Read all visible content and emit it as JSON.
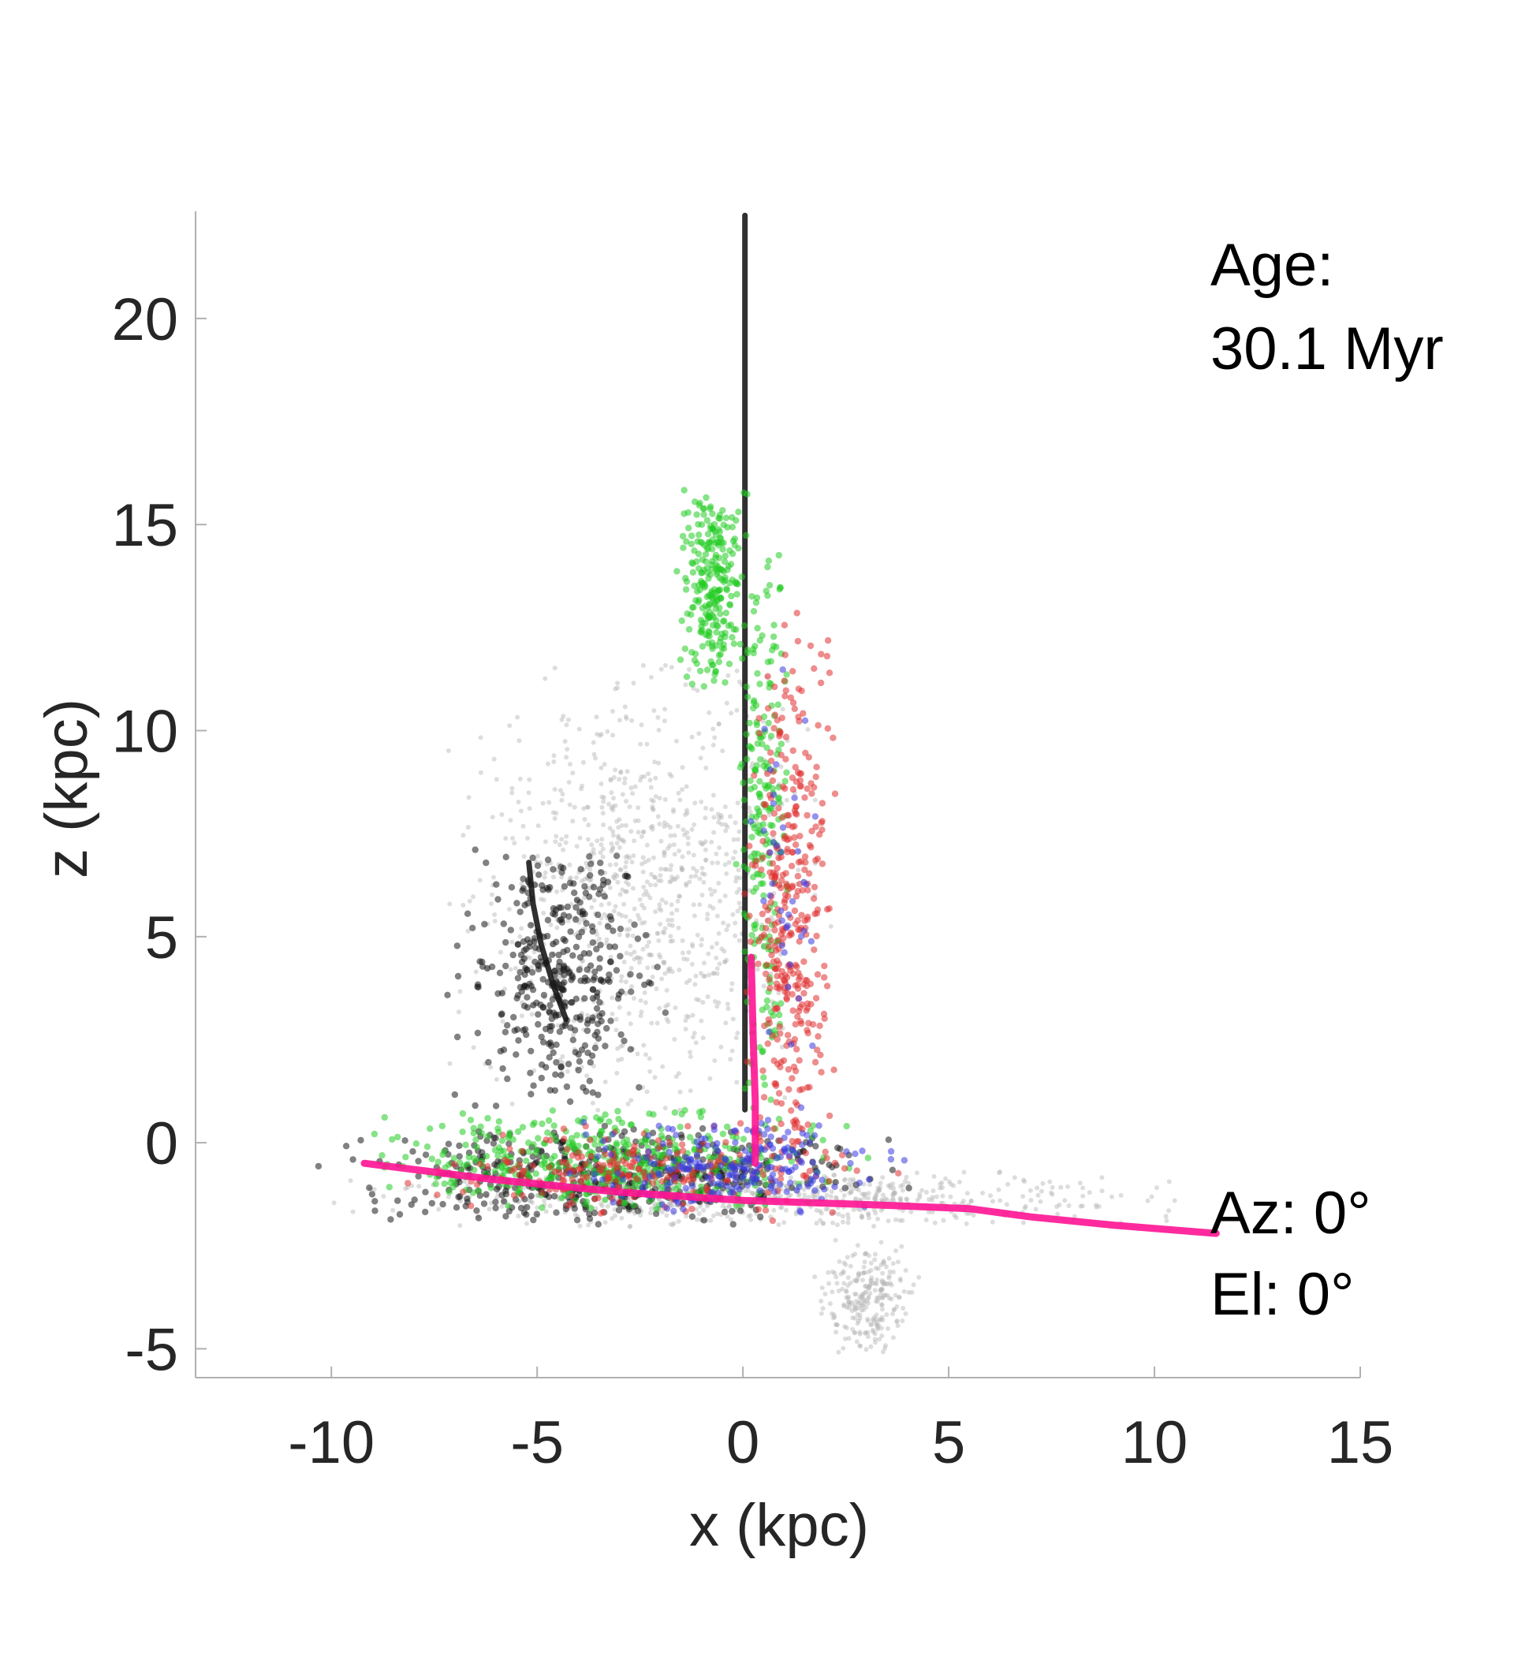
{
  "chart_data": {
    "type": "scatter",
    "title": "",
    "xlabel": "x (kpc)",
    "ylabel": "z (kpc)",
    "xlim": [
      -13.3,
      15
    ],
    "ylim": [
      -5.7,
      22.6
    ],
    "x_ticks": [
      -10,
      -5,
      0,
      5,
      10,
      15
    ],
    "x_tick_labels": [
      "-10",
      "-5",
      "0",
      "5",
      "10",
      "15"
    ],
    "y_ticks": [
      -5,
      0,
      5,
      10,
      15,
      20
    ],
    "y_tick_labels": [
      "-5",
      "0",
      "5",
      "10",
      "15",
      "20"
    ],
    "grid": false,
    "legend": "none",
    "annotations": {
      "age_label": "Age:",
      "age_value": "30.1 Myr",
      "azimuth": "Az: 0°",
      "elevation": "El: 0°"
    },
    "series_colors": {
      "grey": "#b4b4b4",
      "black": "#1a1a1a",
      "green": "#22cc22",
      "red": "#e03030",
      "blue": "#3a3ae0",
      "magenta": "#ff1493"
    },
    "features": [
      {
        "kind": "line",
        "color": "black",
        "points": [
          [
            0.05,
            0.8
          ],
          [
            0.05,
            5
          ],
          [
            0.05,
            10
          ],
          [
            0.05,
            15
          ],
          [
            0.05,
            20
          ],
          [
            0.05,
            22.5
          ]
        ]
      },
      {
        "kind": "line",
        "color": "black",
        "points": [
          [
            -5.2,
            6.8
          ],
          [
            -5.1,
            5.8
          ],
          [
            -4.9,
            4.8
          ],
          [
            -4.6,
            3.8
          ],
          [
            -4.3,
            3.0
          ]
        ]
      },
      {
        "kind": "line",
        "color": "magenta",
        "points": [
          [
            -9.2,
            -0.5
          ],
          [
            -6,
            -0.9
          ],
          [
            -3,
            -1.2
          ],
          [
            0,
            -1.4
          ],
          [
            3,
            -1.5
          ],
          [
            5.5,
            -1.6
          ],
          [
            7,
            -1.8
          ],
          [
            9,
            -2.0
          ],
          [
            11.5,
            -2.2
          ]
        ]
      },
      {
        "kind": "line",
        "color": "magenta",
        "points": [
          [
            0.2,
            4.5
          ],
          [
            0.25,
            2.5
          ],
          [
            0.3,
            1.0
          ],
          [
            0.3,
            -0.5
          ]
        ]
      },
      {
        "kind": "cloud",
        "color": "grey",
        "n": 700,
        "x": [
          -11.5,
          13.0
        ],
        "z": [
          -2.1,
          -0.6
        ]
      },
      {
        "kind": "cloud",
        "color": "grey",
        "n": 900,
        "x": [
          -8.0,
          3.0
        ],
        "z": [
          0.5,
          12.0
        ]
      },
      {
        "kind": "cloud",
        "color": "grey",
        "n": 250,
        "x": [
          1.5,
          4.5
        ],
        "z": [
          -5.3,
          -2.2
        ]
      },
      {
        "kind": "cloud",
        "color": "black",
        "n": 380,
        "x": [
          -7.5,
          -1.5
        ],
        "z": [
          0.5,
          7.5
        ]
      },
      {
        "kind": "cloud",
        "color": "black",
        "n": 500,
        "x": [
          -11.0,
          5.0
        ],
        "z": [
          -2.0,
          0.5
        ]
      },
      {
        "kind": "cloud",
        "color": "green",
        "n": 260,
        "x": [
          -1.8,
          0.3
        ],
        "z": [
          10.5,
          16.5
        ]
      },
      {
        "kind": "cloud",
        "color": "green",
        "n": 450,
        "x": [
          -10.5,
          4.5
        ],
        "z": [
          -1.8,
          0.9
        ]
      },
      {
        "kind": "cloud",
        "color": "green",
        "n": 220,
        "x": [
          -0.3,
          1.3
        ],
        "z": [
          0.5,
          15.0
        ]
      },
      {
        "kind": "cloud",
        "color": "red",
        "n": 380,
        "x": [
          -0.2,
          2.5
        ],
        "z": [
          -2.8,
          13.5
        ]
      },
      {
        "kind": "cloud",
        "color": "red",
        "n": 220,
        "x": [
          -9.5,
          4.5
        ],
        "z": [
          -1.8,
          0.5
        ]
      },
      {
        "kind": "cloud",
        "color": "blue",
        "n": 230,
        "x": [
          -5.0,
          4.5
        ],
        "z": [
          -1.8,
          0.6
        ]
      },
      {
        "kind": "cloud",
        "color": "blue",
        "n": 40,
        "x": [
          0.0,
          2.0
        ],
        "z": [
          0.5,
          12.0
        ]
      }
    ]
  }
}
